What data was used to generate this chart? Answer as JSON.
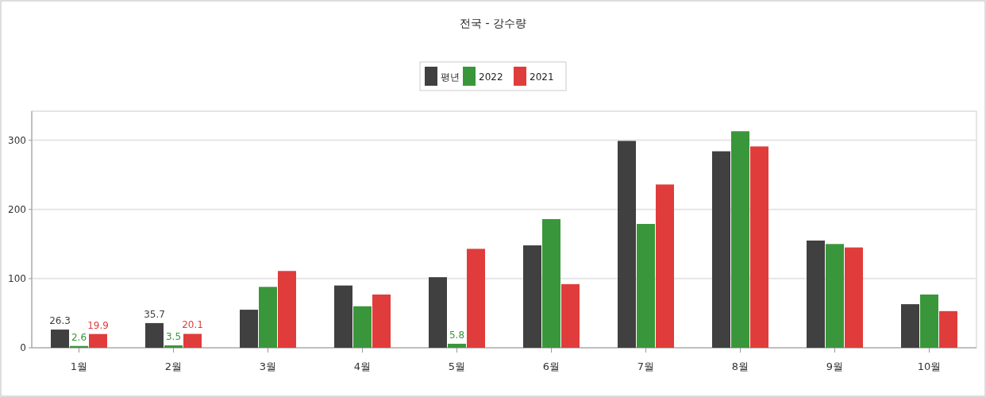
{
  "chart_data": {
    "type": "bar",
    "title": "전국 - 강수량",
    "categories": [
      "1월",
      "2월",
      "3월",
      "4월",
      "5월",
      "6월",
      "7월",
      "8월",
      "9월",
      "10월"
    ],
    "series": [
      {
        "name": "평년",
        "color": "#404040",
        "values": [
          26.3,
          35.7,
          55,
          90,
          102,
          148,
          299,
          284,
          155,
          63
        ],
        "value_labels": [
          "26.3",
          "35.7",
          null,
          null,
          null,
          null,
          null,
          null,
          null,
          null
        ]
      },
      {
        "name": "2022",
        "color": "#3a963a",
        "values": [
          2.6,
          3.5,
          88,
          60,
          5.8,
          186,
          179,
          313,
          150,
          77
        ],
        "value_labels": [
          "2.6",
          "3.5",
          null,
          null,
          "5.8",
          null,
          null,
          null,
          null,
          null
        ]
      },
      {
        "name": "2021",
        "color": "#e03c3c",
        "values": [
          19.9,
          20.1,
          111,
          77,
          143,
          92,
          236,
          291,
          145,
          53
        ],
        "value_labels": [
          "19.9",
          "20.1",
          null,
          null,
          null,
          null,
          null,
          null,
          null,
          null
        ]
      }
    ],
    "ylim": [
      0,
      342
    ],
    "yticks": [
      0,
      100,
      200,
      300
    ],
    "grid": "y",
    "legend": "top"
  }
}
